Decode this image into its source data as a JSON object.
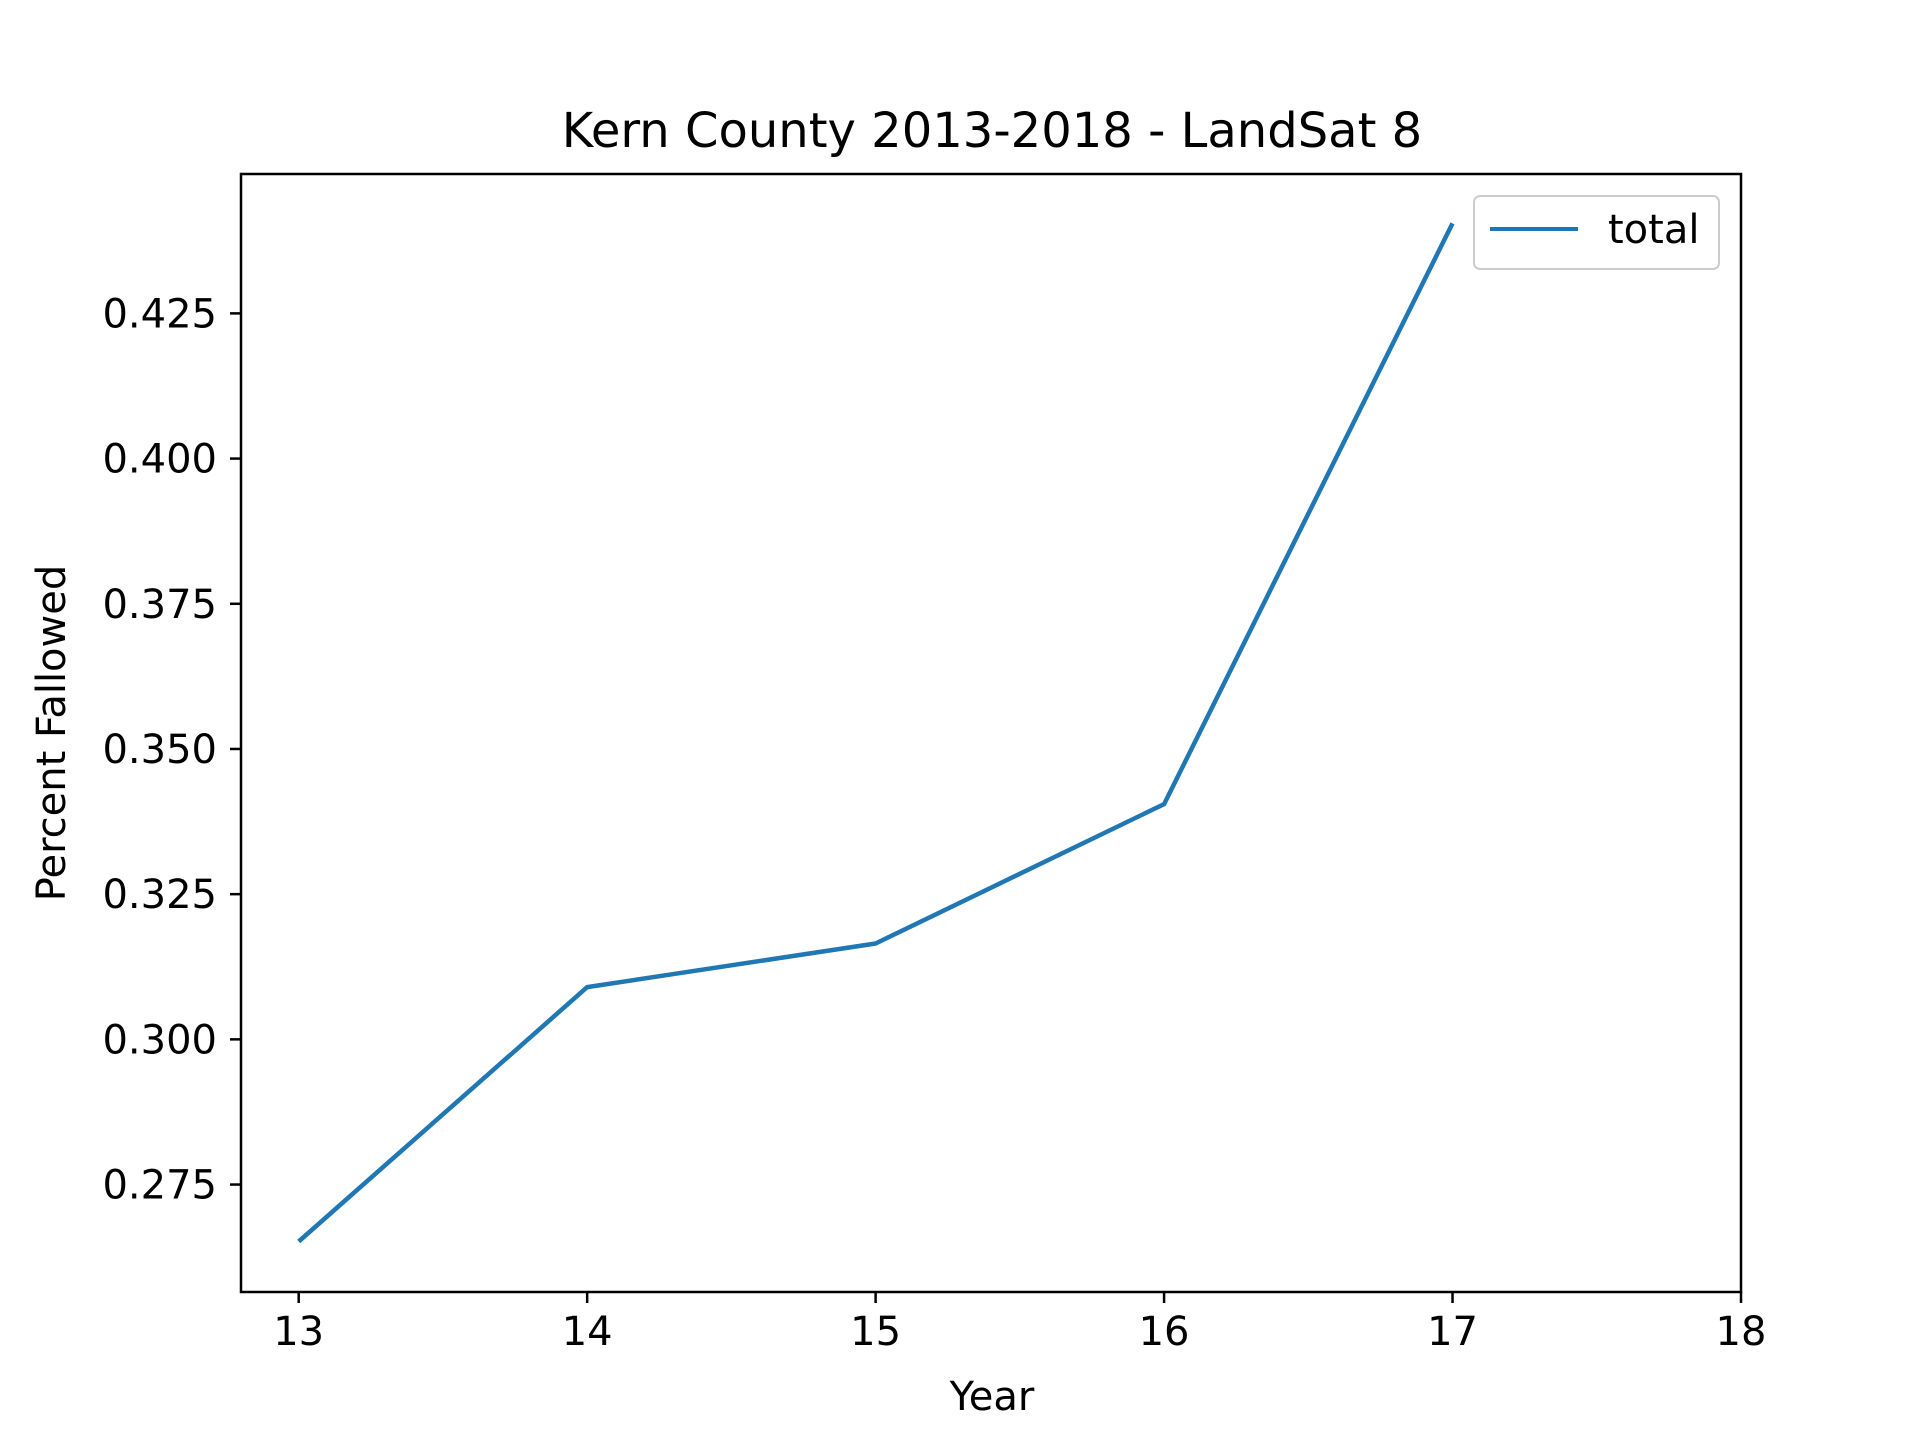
{
  "chart_data": {
    "type": "line",
    "title": "Kern County 2013-2018 - LandSat 8",
    "xlabel": "Year",
    "ylabel": "Percent Fallowed",
    "x": [
      13,
      14,
      15,
      16,
      17
    ],
    "series": [
      {
        "name": "total",
        "color": "#1f77b4",
        "values": [
          0.2652,
          0.309,
          0.3165,
          0.3405,
          0.4405
        ]
      }
    ],
    "xlim": [
      12.8,
      18
    ],
    "ylim": [
      0.2565,
      0.449
    ],
    "xticks": [
      13,
      14,
      15,
      16,
      17,
      18
    ],
    "xtick_labels": [
      "13",
      "14",
      "15",
      "16",
      "17",
      "18"
    ],
    "yticks": [
      0.275,
      0.3,
      0.325,
      0.35,
      0.375,
      0.4,
      0.425
    ],
    "ytick_labels": [
      "0.275",
      "0.300",
      "0.325",
      "0.350",
      "0.375",
      "0.400",
      "0.425"
    ],
    "legend": "top-right",
    "grid": false
  }
}
